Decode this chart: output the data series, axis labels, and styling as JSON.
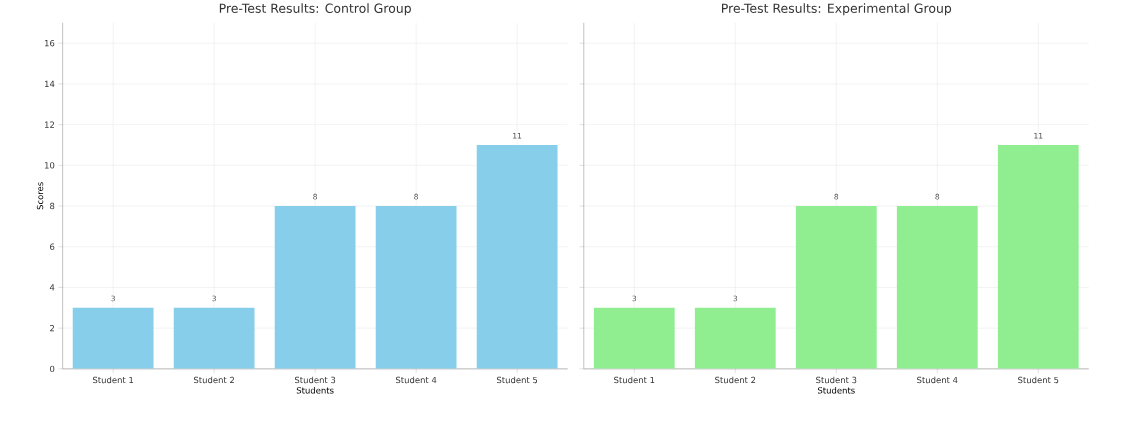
{
  "chart_data": [
    {
      "type": "bar",
      "title": "Pre-Test Results: Control Group",
      "xlabel": "Students",
      "ylabel": "Scores",
      "categories": [
        "Student 1",
        "Student 2",
        "Student 3",
        "Student 4",
        "Student 5"
      ],
      "values": [
        3,
        3,
        8,
        8,
        11
      ],
      "color": "#87ceeb",
      "ylim": [
        0,
        17
      ],
      "yticks": [
        0,
        2,
        4,
        6,
        8,
        10,
        12,
        14,
        16
      ],
      "grid": true,
      "data_labels": true
    },
    {
      "type": "bar",
      "title": "Pre-Test Results: Experimental Group",
      "xlabel": "Students",
      "categories": [
        "Student 1",
        "Student 2",
        "Student 3",
        "Student 4",
        "Student 5"
      ],
      "values": [
        3,
        3,
        8,
        8,
        11
      ],
      "color": "#90ee90",
      "ylim": [
        0,
        17
      ],
      "yticks": [
        0,
        2,
        4,
        6,
        8,
        10,
        12,
        14,
        16
      ],
      "grid": true,
      "data_labels": true,
      "tick_labels": "x"
    }
  ]
}
